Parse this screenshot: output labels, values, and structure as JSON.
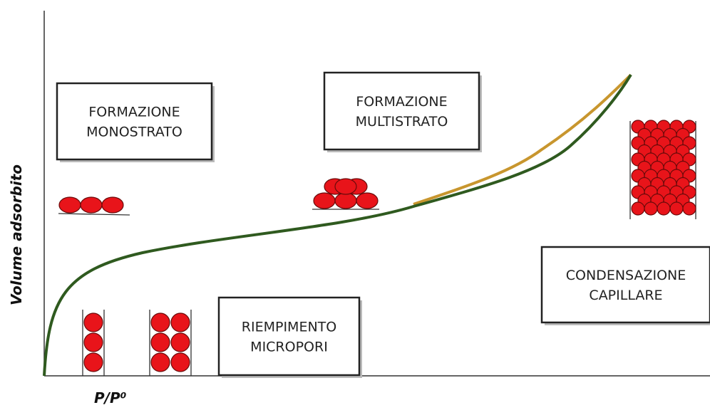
{
  "axes": {
    "y_label": "Volume adsorbito",
    "x_label": "P/P⁰"
  },
  "boxes": [
    {
      "lines": [
        "FORMAZIONE",
        "MONOSTRATO"
      ]
    },
    {
      "lines": [
        "FORMAZIONE",
        "MULTISTRATO"
      ]
    },
    {
      "lines": [
        "RIEMPIMENTO",
        "MICROPORI"
      ]
    },
    {
      "lines": [
        "CONDENSAZIONE",
        "CAPILLARE"
      ]
    }
  ]
}
